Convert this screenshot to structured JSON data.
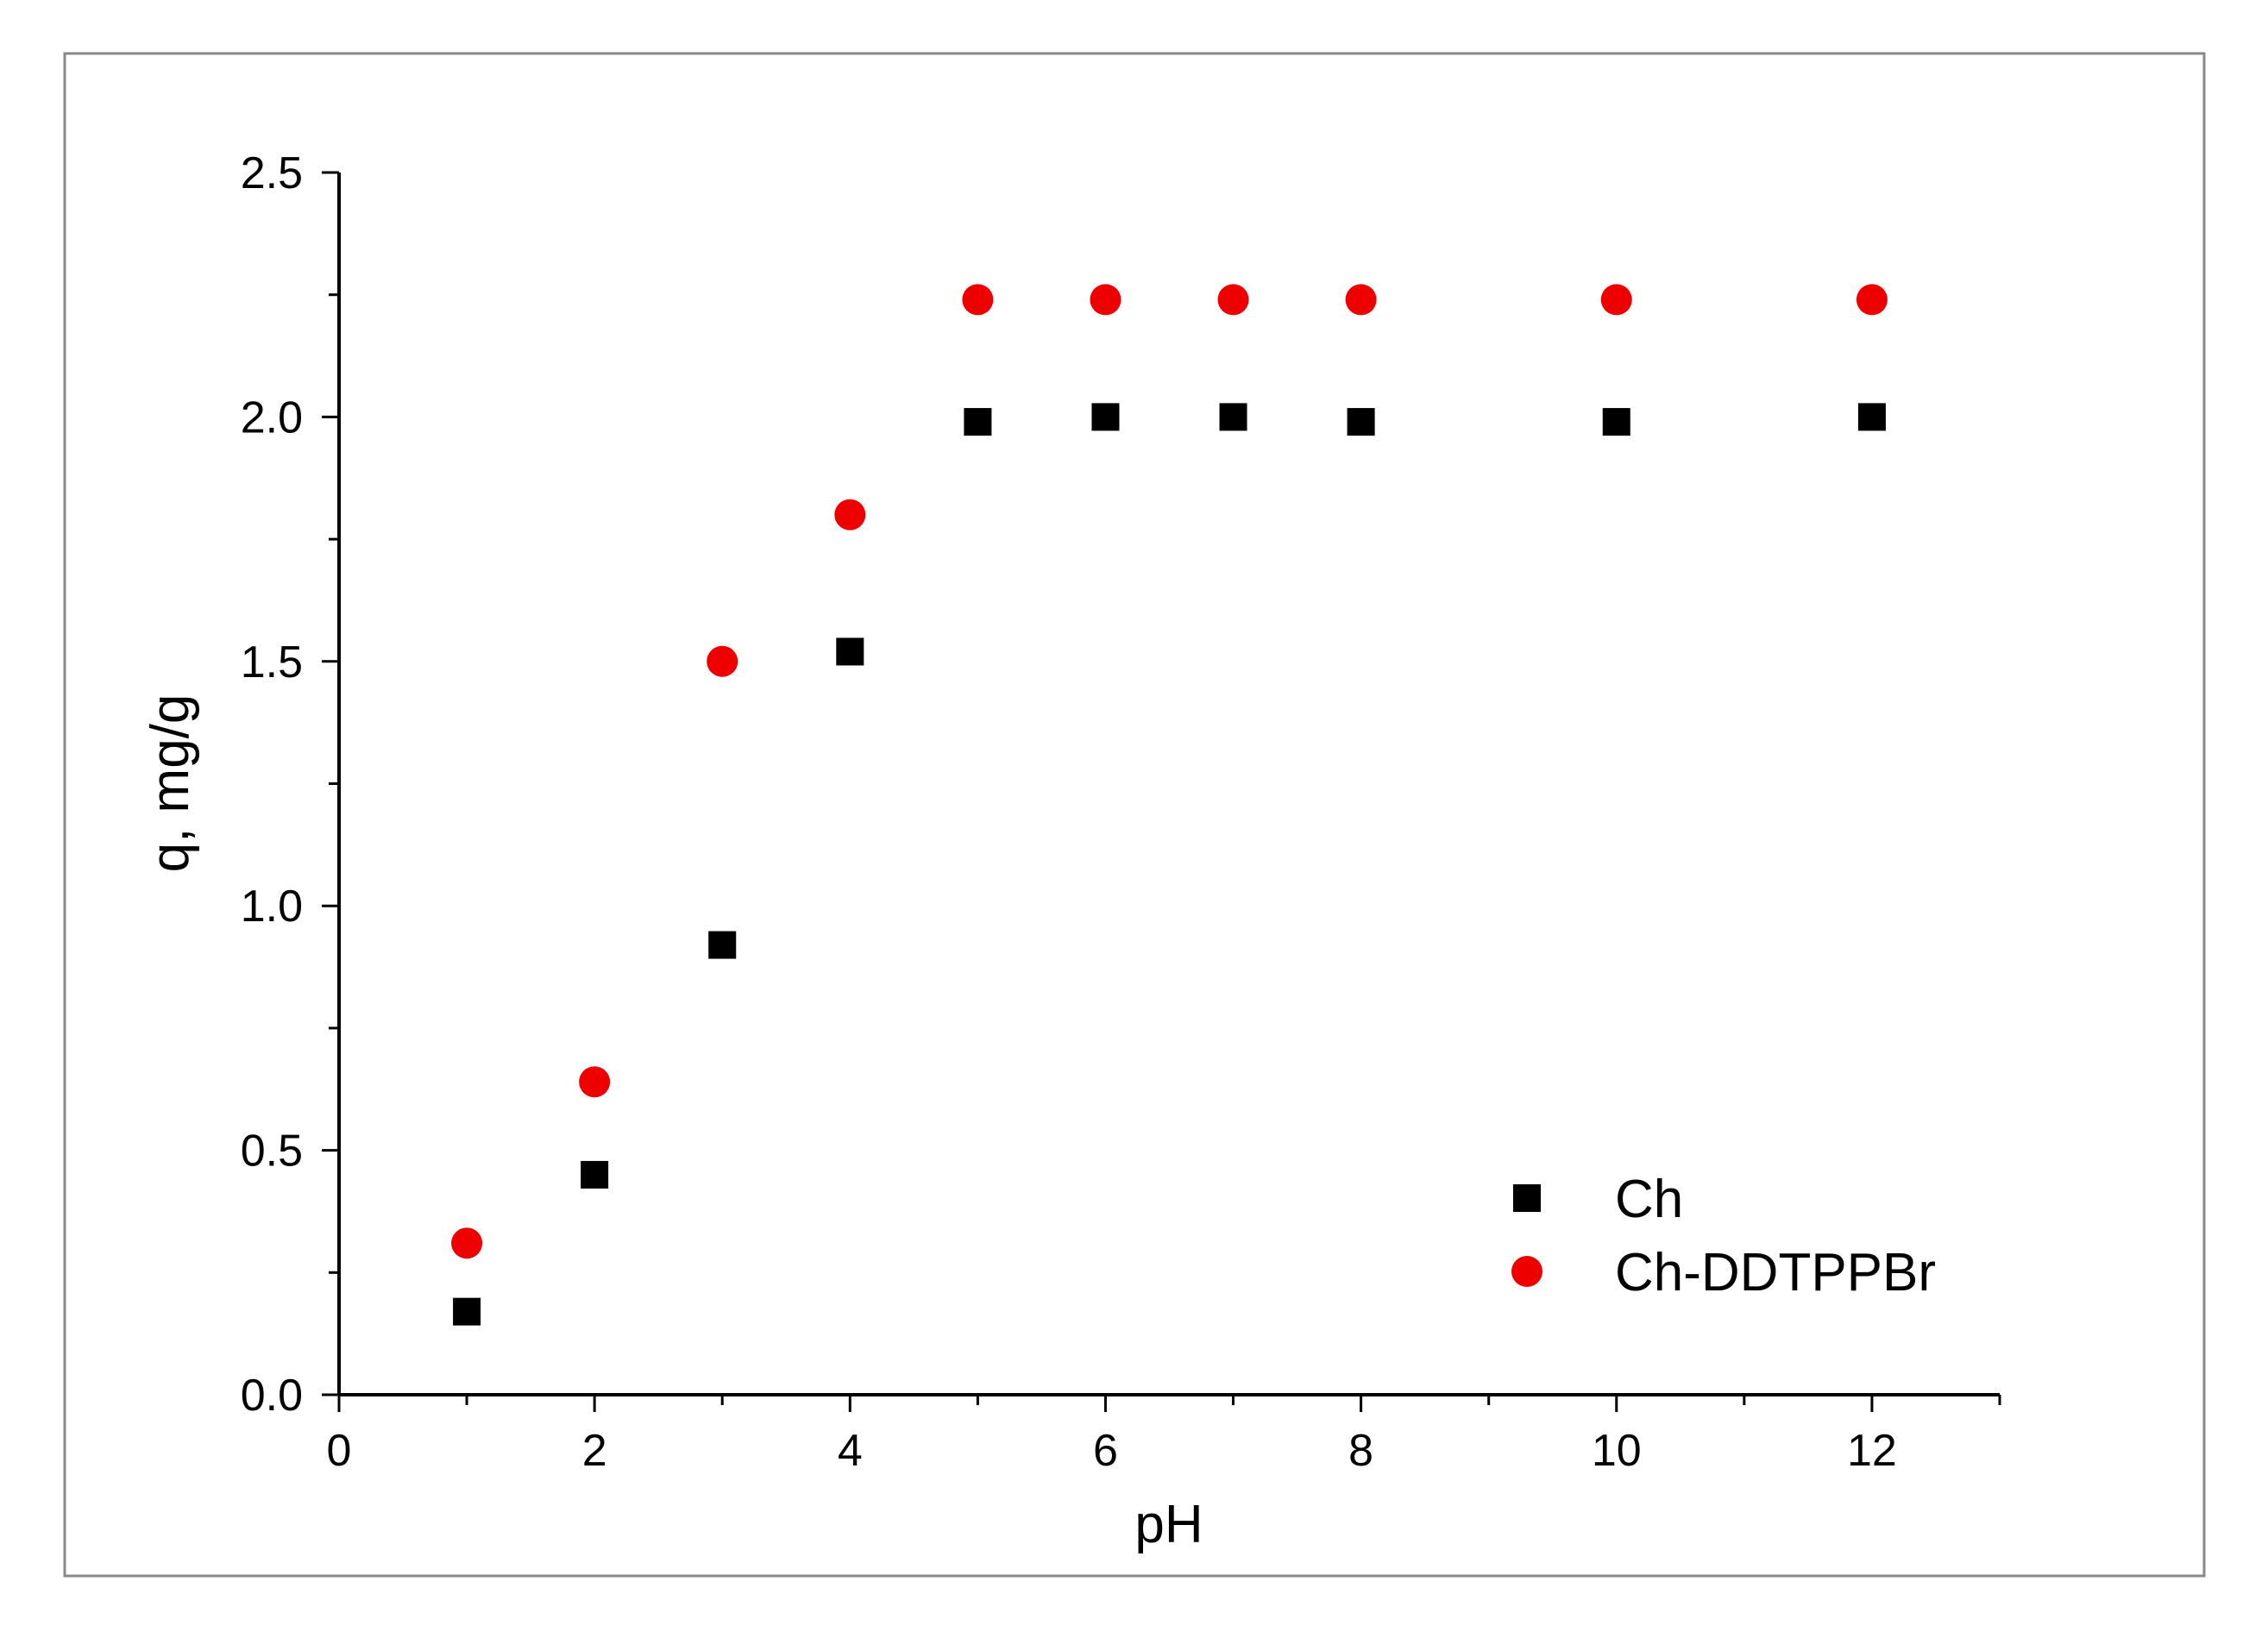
{
  "chart_data": {
    "type": "scatter",
    "title": "",
    "xlabel": "pH",
    "ylabel": "q, mg/g",
    "xlim": [
      0,
      13
    ],
    "ylim": [
      0,
      2.5
    ],
    "x_ticks": [
      0,
      2,
      4,
      6,
      8,
      10,
      12
    ],
    "x_tick_labels": [
      "0",
      "2",
      "4",
      "6",
      "8",
      "10",
      "12"
    ],
    "x_minor_ticks": [
      1,
      3,
      5,
      7,
      9,
      11,
      13
    ],
    "y_ticks": [
      0,
      0.5,
      1.0,
      1.5,
      2.0,
      2.5
    ],
    "y_tick_labels": [
      "0.0",
      "0.5",
      "1.0",
      "1.5",
      "2.0",
      "2.5"
    ],
    "y_minor_ticks": [
      0.25,
      0.75,
      1.25,
      1.75,
      2.25
    ],
    "grid": false,
    "legend_position": "bottom-right",
    "series": [
      {
        "name": "Ch",
        "marker": "square",
        "color": "#000000",
        "x": [
          1,
          2,
          3,
          4,
          5,
          6,
          7,
          8,
          10,
          12
        ],
        "y": [
          0.17,
          0.45,
          0.92,
          1.52,
          1.99,
          2.0,
          2.0,
          1.99,
          1.99,
          2.0
        ]
      },
      {
        "name": "Ch-DDTPPBr",
        "marker": "circle",
        "color": "#ee0000",
        "x": [
          1,
          2,
          3,
          4,
          5,
          6,
          7,
          8,
          10,
          12
        ],
        "y": [
          0.31,
          0.64,
          1.5,
          1.8,
          2.24,
          2.24,
          2.24,
          2.24,
          2.24,
          2.24
        ]
      }
    ]
  }
}
